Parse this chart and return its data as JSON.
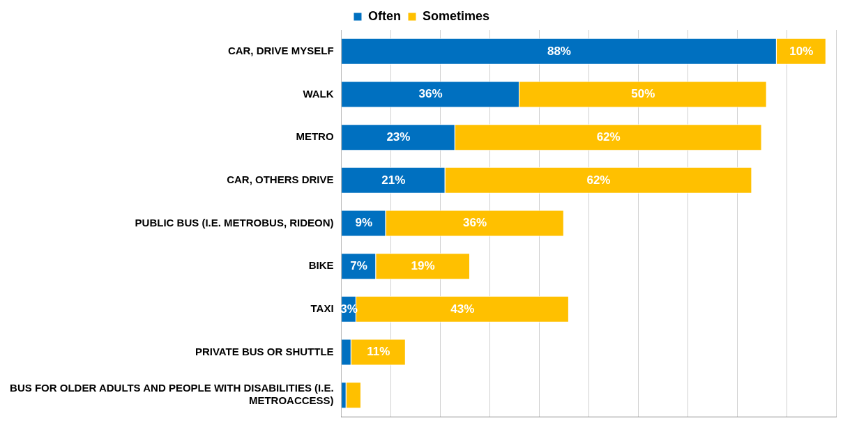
{
  "chart_data": {
    "type": "bar",
    "orientation": "horizontal",
    "stacked": true,
    "categories": [
      "CAR, DRIVE MYSELF",
      "WALK",
      "METRO",
      "CAR, OTHERS DRIVE",
      "PUBLIC BUS (I.E. METROBUS, RIDEON)",
      "BIKE",
      "TAXI",
      "PRIVATE BUS OR SHUTTLE",
      "BUS FOR OLDER ADULTS AND PEOPLE WITH DISABILITIES (I.E. METROACCESS)"
    ],
    "series": [
      {
        "name": "Often",
        "color": "#0070c0",
        "values": [
          88,
          36,
          23,
          21,
          9,
          7,
          3,
          2,
          1
        ],
        "value_labels": [
          "88%",
          "36%",
          "23%",
          "21%",
          "9%",
          "7%",
          "3%",
          null,
          null
        ]
      },
      {
        "name": "Sometimes",
        "color": "#ffc000",
        "values": [
          10,
          50,
          62,
          62,
          36,
          19,
          43,
          11,
          3
        ],
        "value_labels": [
          "10%",
          "50%",
          "62%",
          "62%",
          "36%",
          "19%",
          "43%",
          "11%",
          null
        ]
      }
    ],
    "xlim": [
      0,
      100
    ],
    "xticks": [
      {
        "value": 0,
        "label": null
      },
      {
        "value": 10,
        "label": null
      },
      {
        "value": 20,
        "label": null
      },
      {
        "value": 30,
        "label": null
      },
      {
        "value": 40,
        "label": null
      },
      {
        "value": 50,
        "label": null
      },
      {
        "value": 60,
        "label": null
      },
      {
        "value": 70,
        "label": null
      },
      {
        "value": 80,
        "label": null
      },
      {
        "value": 90,
        "label": null
      },
      {
        "value": 100,
        "label": null
      }
    ],
    "grid": "x",
    "legend": "top",
    "tick_labels": "y"
  }
}
